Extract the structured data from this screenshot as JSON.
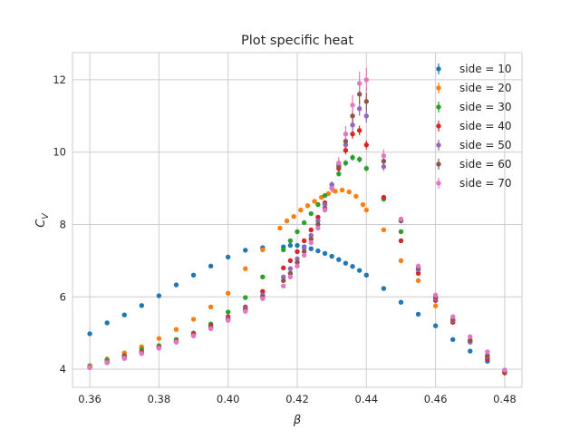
{
  "chart_data": {
    "type": "scatter",
    "title": "Plot specific heat",
    "xlabel": "β",
    "ylabel": "C_V",
    "ylabel_main": "C",
    "ylabel_sub": "V",
    "xlim": [
      0.355,
      0.485
    ],
    "ylim": [
      3.5,
      12.75
    ],
    "xticks": [
      "0.36",
      "0.38",
      "0.40",
      "0.42",
      "0.44",
      "0.46",
      "0.48"
    ],
    "yticks": [
      "4",
      "6",
      "8",
      "10",
      "12"
    ],
    "grid": true,
    "legend_position": "top-right",
    "series": [
      {
        "name": "side = 10",
        "color": "#1f77b4",
        "points": [
          [
            0.36,
            4.98
          ],
          [
            0.365,
            5.28
          ],
          [
            0.37,
            5.5
          ],
          [
            0.375,
            5.76
          ],
          [
            0.38,
            6.03
          ],
          [
            0.385,
            6.33
          ],
          [
            0.39,
            6.6
          ],
          [
            0.395,
            6.85
          ],
          [
            0.4,
            7.1
          ],
          [
            0.405,
            7.29
          ],
          [
            0.41,
            7.36
          ],
          [
            0.416,
            7.38
          ],
          [
            0.418,
            7.42
          ],
          [
            0.42,
            7.42
          ],
          [
            0.422,
            7.38
          ],
          [
            0.424,
            7.33
          ],
          [
            0.426,
            7.27
          ],
          [
            0.428,
            7.2
          ],
          [
            0.43,
            7.12
          ],
          [
            0.432,
            7.03
          ],
          [
            0.434,
            6.93
          ],
          [
            0.436,
            6.84
          ],
          [
            0.438,
            6.73
          ],
          [
            0.44,
            6.6
          ],
          [
            0.445,
            6.23
          ],
          [
            0.45,
            5.85
          ],
          [
            0.455,
            5.52
          ],
          [
            0.46,
            5.2
          ],
          [
            0.465,
            4.82
          ],
          [
            0.47,
            4.5
          ],
          [
            0.475,
            4.22
          ],
          [
            0.48,
            3.95
          ]
        ]
      },
      {
        "name": "side = 20",
        "color": "#ff7f0e",
        "points": [
          [
            0.36,
            4.1
          ],
          [
            0.365,
            4.28
          ],
          [
            0.37,
            4.45
          ],
          [
            0.375,
            4.62
          ],
          [
            0.38,
            4.85
          ],
          [
            0.385,
            5.1
          ],
          [
            0.39,
            5.38
          ],
          [
            0.395,
            5.72
          ],
          [
            0.4,
            6.1
          ],
          [
            0.405,
            6.78
          ],
          [
            0.41,
            7.3
          ],
          [
            0.415,
            7.9
          ],
          [
            0.417,
            8.1
          ],
          [
            0.419,
            8.22
          ],
          [
            0.421,
            8.4
          ],
          [
            0.423,
            8.52
          ],
          [
            0.425,
            8.64
          ],
          [
            0.427,
            8.75
          ],
          [
            0.429,
            8.85
          ],
          [
            0.431,
            8.92
          ],
          [
            0.433,
            8.95
          ],
          [
            0.435,
            8.9
          ],
          [
            0.437,
            8.78
          ],
          [
            0.439,
            8.55
          ],
          [
            0.44,
            8.4
          ],
          [
            0.445,
            7.85
          ],
          [
            0.45,
            7.0
          ],
          [
            0.455,
            6.45
          ],
          [
            0.46,
            5.75
          ],
          [
            0.465,
            5.3
          ],
          [
            0.47,
            4.8
          ],
          [
            0.475,
            4.35
          ],
          [
            0.48,
            3.92
          ]
        ]
      },
      {
        "name": "side = 30",
        "color": "#2ca02c",
        "points": [
          [
            0.36,
            4.08
          ],
          [
            0.365,
            4.25
          ],
          [
            0.37,
            4.38
          ],
          [
            0.375,
            4.55
          ],
          [
            0.38,
            4.65
          ],
          [
            0.385,
            4.82
          ],
          [
            0.39,
            5.0
          ],
          [
            0.395,
            5.25
          ],
          [
            0.4,
            5.58
          ],
          [
            0.405,
            5.98
          ],
          [
            0.41,
            6.55
          ],
          [
            0.416,
            7.3
          ],
          [
            0.418,
            7.55
          ],
          [
            0.42,
            7.8
          ],
          [
            0.422,
            8.05
          ],
          [
            0.424,
            8.3
          ],
          [
            0.426,
            8.55
          ],
          [
            0.428,
            8.8
          ],
          [
            0.43,
            9.1
          ],
          [
            0.432,
            9.4
          ],
          [
            0.434,
            9.7
          ],
          [
            0.436,
            9.85
          ],
          [
            0.438,
            9.8
          ],
          [
            0.44,
            9.55
          ],
          [
            0.445,
            8.7
          ],
          [
            0.45,
            7.8
          ],
          [
            0.455,
            6.75
          ],
          [
            0.46,
            5.95
          ],
          [
            0.465,
            5.35
          ],
          [
            0.47,
            4.78
          ],
          [
            0.475,
            4.3
          ],
          [
            0.48,
            3.9
          ]
        ]
      },
      {
        "name": "side = 40",
        "color": "#d62728",
        "points": [
          [
            0.36,
            4.05
          ],
          [
            0.365,
            4.2
          ],
          [
            0.37,
            4.35
          ],
          [
            0.375,
            4.48
          ],
          [
            0.38,
            4.62
          ],
          [
            0.385,
            4.78
          ],
          [
            0.39,
            4.98
          ],
          [
            0.395,
            5.2
          ],
          [
            0.4,
            5.45
          ],
          [
            0.405,
            5.72
          ],
          [
            0.41,
            6.15
          ],
          [
            0.416,
            6.8
          ],
          [
            0.418,
            7.0
          ],
          [
            0.42,
            7.25
          ],
          [
            0.422,
            7.55
          ],
          [
            0.424,
            7.85
          ],
          [
            0.426,
            8.2
          ],
          [
            0.428,
            8.6
          ],
          [
            0.43,
            9.0
          ],
          [
            0.432,
            9.55
          ],
          [
            0.434,
            10.05
          ],
          [
            0.436,
            10.5
          ],
          [
            0.438,
            10.6
          ],
          [
            0.44,
            10.2
          ],
          [
            0.445,
            8.75
          ],
          [
            0.45,
            7.55
          ],
          [
            0.455,
            6.65
          ],
          [
            0.46,
            5.9
          ],
          [
            0.465,
            5.3
          ],
          [
            0.47,
            4.75
          ],
          [
            0.475,
            4.28
          ],
          [
            0.48,
            3.9
          ]
        ]
      },
      {
        "name": "side = 50",
        "color": "#9467bd",
        "points": [
          [
            0.36,
            4.05
          ],
          [
            0.365,
            4.2
          ],
          [
            0.37,
            4.32
          ],
          [
            0.375,
            4.45
          ],
          [
            0.38,
            4.6
          ],
          [
            0.385,
            4.76
          ],
          [
            0.39,
            4.95
          ],
          [
            0.395,
            5.15
          ],
          [
            0.4,
            5.4
          ],
          [
            0.405,
            5.68
          ],
          [
            0.41,
            6.05
          ],
          [
            0.416,
            6.55
          ],
          [
            0.418,
            6.78
          ],
          [
            0.42,
            7.05
          ],
          [
            0.422,
            7.35
          ],
          [
            0.424,
            7.7
          ],
          [
            0.426,
            8.1
          ],
          [
            0.428,
            8.55
          ],
          [
            0.43,
            9.1
          ],
          [
            0.432,
            9.65
          ],
          [
            0.434,
            10.2
          ],
          [
            0.436,
            10.75
          ],
          [
            0.438,
            11.2
          ],
          [
            0.44,
            11.0
          ],
          [
            0.445,
            9.6
          ],
          [
            0.45,
            8.1
          ],
          [
            0.455,
            6.75
          ],
          [
            0.46,
            5.95
          ],
          [
            0.465,
            5.35
          ],
          [
            0.47,
            4.75
          ],
          [
            0.475,
            4.35
          ],
          [
            0.48,
            3.95
          ]
        ]
      },
      {
        "name": "side = 60",
        "color": "#8c564b",
        "points": [
          [
            0.36,
            4.05
          ],
          [
            0.365,
            4.18
          ],
          [
            0.37,
            4.3
          ],
          [
            0.375,
            4.45
          ],
          [
            0.38,
            4.6
          ],
          [
            0.385,
            4.75
          ],
          [
            0.39,
            4.95
          ],
          [
            0.395,
            5.15
          ],
          [
            0.4,
            5.38
          ],
          [
            0.405,
            5.65
          ],
          [
            0.41,
            6.0
          ],
          [
            0.416,
            6.45
          ],
          [
            0.418,
            6.65
          ],
          [
            0.42,
            6.95
          ],
          [
            0.422,
            7.25
          ],
          [
            0.424,
            7.6
          ],
          [
            0.426,
            8.0
          ],
          [
            0.428,
            8.45
          ],
          [
            0.43,
            9.0
          ],
          [
            0.432,
            9.6
          ],
          [
            0.434,
            10.3
          ],
          [
            0.436,
            11.0
          ],
          [
            0.438,
            11.6
          ],
          [
            0.44,
            11.4
          ],
          [
            0.445,
            9.75
          ],
          [
            0.45,
            8.1
          ],
          [
            0.455,
            6.8
          ],
          [
            0.46,
            6.0
          ],
          [
            0.465,
            5.38
          ],
          [
            0.47,
            4.8
          ],
          [
            0.475,
            4.38
          ],
          [
            0.48,
            3.95
          ]
        ]
      },
      {
        "name": "side = 70",
        "color": "#e377c2",
        "points": [
          [
            0.36,
            4.05
          ],
          [
            0.365,
            4.18
          ],
          [
            0.37,
            4.3
          ],
          [
            0.375,
            4.43
          ],
          [
            0.38,
            4.58
          ],
          [
            0.385,
            4.75
          ],
          [
            0.39,
            4.92
          ],
          [
            0.395,
            5.12
          ],
          [
            0.4,
            5.35
          ],
          [
            0.405,
            5.6
          ],
          [
            0.41,
            5.95
          ],
          [
            0.416,
            6.3
          ],
          [
            0.418,
            6.55
          ],
          [
            0.42,
            6.85
          ],
          [
            0.422,
            7.15
          ],
          [
            0.424,
            7.5
          ],
          [
            0.426,
            7.9
          ],
          [
            0.428,
            8.4
          ],
          [
            0.43,
            9.0
          ],
          [
            0.432,
            9.7
          ],
          [
            0.434,
            10.5
          ],
          [
            0.436,
            11.3
          ],
          [
            0.438,
            11.9
          ],
          [
            0.44,
            12.0
          ],
          [
            0.445,
            9.9
          ],
          [
            0.45,
            8.15
          ],
          [
            0.455,
            6.85
          ],
          [
            0.46,
            6.05
          ],
          [
            0.465,
            5.45
          ],
          [
            0.47,
            4.9
          ],
          [
            0.475,
            4.48
          ],
          [
            0.48,
            3.98
          ]
        ]
      }
    ]
  }
}
